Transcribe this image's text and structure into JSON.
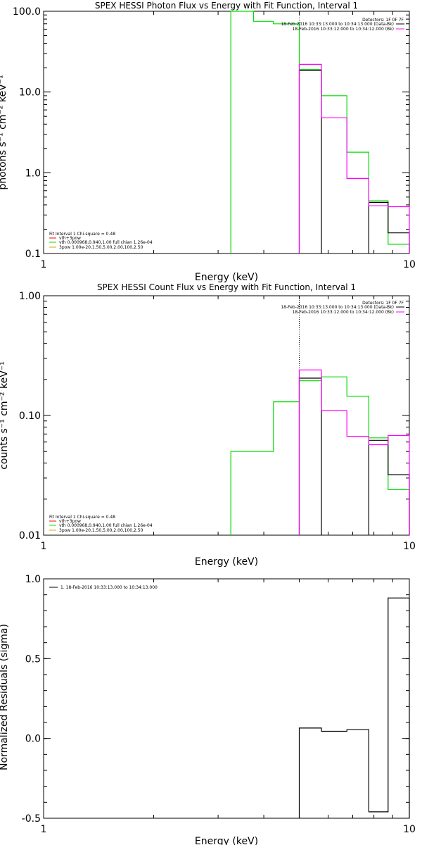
{
  "chart_data": [
    {
      "type": "line",
      "title": "SPEX HESSI Photon Flux vs Energy with Fit Function, Interval 1",
      "xlabel": "Energy (keV)",
      "ylabel": "photons s⁻¹ cm⁻² keV⁻¹",
      "xscale": "log",
      "yscale": "log",
      "xlim": [
        1,
        10
      ],
      "ylim": [
        0.1,
        100
      ],
      "xticks": [
        {
          "v": 1,
          "label": "1"
        },
        {
          "v": 10,
          "label": "10"
        }
      ],
      "yticks": [
        {
          "v": 0.1,
          "label": "0.1"
        },
        {
          "v": 1,
          "label": "1.0"
        },
        {
          "v": 10,
          "label": "10.0"
        },
        {
          "v": 100,
          "label": "100.0"
        }
      ],
      "vline": 5.0,
      "legend_right": {
        "detectors": "Detectors: 1F 0F 7F",
        "lines": [
          {
            "text": "18-Feb-2016 10:33:13.000 to 10:34:13.000 (Data-Bk)",
            "color": "#000000"
          },
          {
            "text": "18-Feb-2016 10:33:12.000 to 10:34:12.000 (Bk)",
            "color": "#ff00ff"
          }
        ]
      },
      "legend_left": {
        "header": "Fit Interval 1   Chi-square = 0.48",
        "lines": [
          {
            "text": "vth+3pow",
            "color": "#ff0000"
          },
          {
            "text": "vth 0.000968,0.940,1.00  full chian 1.26e-04",
            "color": "#00e000"
          },
          {
            "text": "3pow 1.00e-20,1.50,5.00,2.00,100,2.50",
            "color": "#e0a000"
          }
        ]
      },
      "series": [
        {
          "color": "#00dd00",
          "bins": [
            [
              3.25,
              3.75,
              100
            ],
            [
              3.75,
              4.25,
              75
            ],
            [
              4.25,
              5.0,
              70
            ],
            [
              5.0,
              5.75,
              19
            ],
            [
              5.75,
              6.75,
              9.0
            ],
            [
              6.75,
              7.75,
              1.8
            ],
            [
              7.75,
              8.75,
              0.45
            ],
            [
              8.75,
              10.0,
              0.13
            ]
          ]
        },
        {
          "color": "#000000",
          "bins": [
            [
              5.0,
              5.75,
              18.5
            ],
            [
              7.75,
              8.75,
              0.43
            ],
            [
              8.75,
              10.0,
              0.18
            ]
          ]
        },
        {
          "color": "#ff00ff",
          "bins": [
            [
              5.0,
              5.75,
              22
            ],
            [
              5.75,
              6.75,
              4.8
            ],
            [
              6.75,
              7.75,
              0.85
            ],
            [
              7.75,
              8.75,
              0.39
            ],
            [
              8.75,
              10.0,
              0.38
            ]
          ]
        }
      ]
    },
    {
      "type": "line",
      "title": "SPEX HESSI Count Flux vs Energy with Fit Function, Interval 1",
      "xlabel": "Energy (keV)",
      "ylabel": "counts s⁻¹ cm⁻² keV⁻¹",
      "xscale": "log",
      "yscale": "log",
      "xlim": [
        1,
        10
      ],
      "ylim": [
        0.01,
        1
      ],
      "xticks": [
        {
          "v": 1,
          "label": "1"
        },
        {
          "v": 10,
          "label": "10"
        }
      ],
      "yticks": [
        {
          "v": 0.01,
          "label": "0.01"
        },
        {
          "v": 0.1,
          "label": "0.10"
        },
        {
          "v": 1,
          "label": "1.00"
        }
      ],
      "vline": 5.0,
      "legend_right": {
        "detectors": "Detectors: 1F 0F 7F",
        "lines": [
          {
            "text": "18-Feb-2016 10:33:13.000 to 10:34:13.000 (Data-Bk)",
            "color": "#000000"
          },
          {
            "text": "18-Feb-2016 10:33:12.000 to 10:34:12.000 (Bk)",
            "color": "#ff00ff"
          }
        ]
      },
      "legend_left": {
        "header": "Fit Interval 1   Chi-square = 0.48",
        "lines": [
          {
            "text": "vth+3pow",
            "color": "#ff0000"
          },
          {
            "text": "vth 0.000968,0.940,1.00  full chian 1.26e-04",
            "color": "#00e000"
          },
          {
            "text": "3pow 1.00e-20,1.50,5.00,2.00,100,2.50",
            "color": "#e0a000"
          }
        ]
      },
      "series": [
        {
          "color": "#00dd00",
          "bins": [
            [
              3.25,
              3.75,
              0.05
            ],
            [
              3.75,
              4.25,
              0.05
            ],
            [
              4.25,
              5.0,
              0.13
            ],
            [
              5.0,
              5.75,
              0.195
            ],
            [
              5.75,
              6.75,
              0.21
            ],
            [
              6.75,
              7.75,
              0.145
            ],
            [
              7.75,
              8.75,
              0.065
            ],
            [
              8.75,
              10.0,
              0.024
            ]
          ]
        },
        {
          "color": "#000000",
          "bins": [
            [
              5.0,
              5.75,
              0.205
            ],
            [
              7.75,
              8.75,
              0.062
            ],
            [
              8.75,
              10.0,
              0.032
            ]
          ]
        },
        {
          "color": "#ff00ff",
          "bins": [
            [
              5.0,
              5.75,
              0.24
            ],
            [
              5.75,
              6.75,
              0.11
            ],
            [
              6.75,
              7.75,
              0.067
            ],
            [
              7.75,
              8.75,
              0.057
            ],
            [
              8.75,
              10.0,
              0.068
            ]
          ]
        }
      ]
    },
    {
      "type": "line",
      "title": "",
      "xlabel": "Energy (keV)",
      "ylabel": "Normalized Residuals (sigma)",
      "xscale": "log",
      "yscale": "linear",
      "xlim": [
        1,
        10
      ],
      "ylim": [
        -0.5,
        1.0
      ],
      "xticks": [
        {
          "v": 1,
          "label": "1"
        },
        {
          "v": 10,
          "label": "10"
        }
      ],
      "yticks": [
        {
          "v": -0.5,
          "label": "-0.5"
        },
        {
          "v": 0,
          "label": "0.0"
        },
        {
          "v": 0.5,
          "label": "0.5"
        },
        {
          "v": 1,
          "label": "1.0"
        }
      ],
      "legend_left_top": {
        "text": "1. 18-Feb-2016 10:33:13.000 to 10:34:13.000"
      },
      "series": [
        {
          "color": "#000000",
          "bins": [
            [
              5.0,
              5.75,
              0.065
            ],
            [
              5.75,
              6.75,
              0.045
            ],
            [
              6.75,
              7.75,
              0.055
            ],
            [
              7.75,
              8.75,
              -0.46
            ],
            [
              8.75,
              10.0,
              0.88
            ]
          ]
        }
      ]
    }
  ]
}
